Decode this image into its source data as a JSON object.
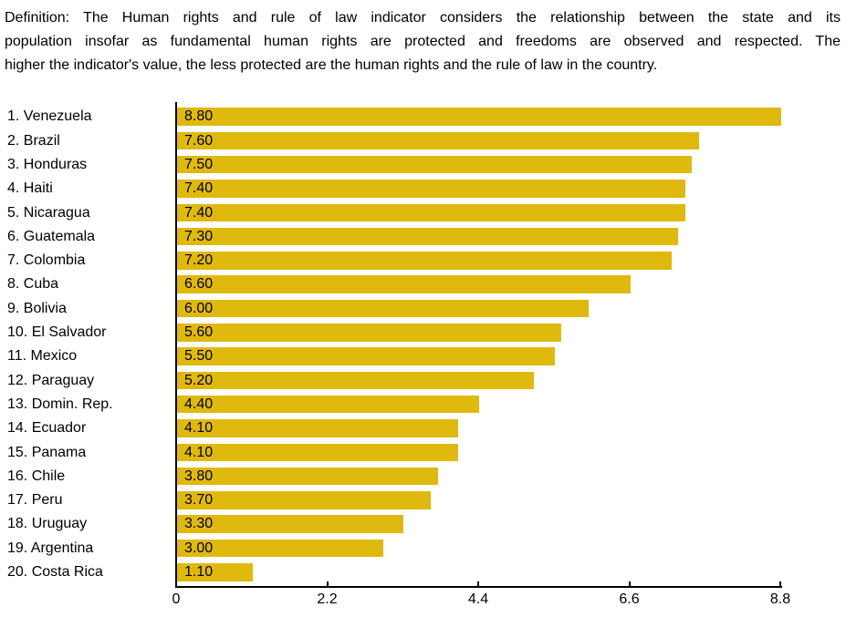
{
  "definition": {
    "full_text": "Definition: The Human rights and rule of law indicator considers the relationship between the state and its population insofar as fundamental human rights are protected and freedoms are observed and respected. The higher the indicator's value, the less protected are the human rights and the rule of law in the country.",
    "lines": [
      "Definition: The Human rights and rule of law indicator considers the relationship between the state and its",
      "population insofar as fundamental human rights are protected and freedoms are observed and respected. The",
      "higher the indicator's value, the less protected are the human rights and the rule of law in the country."
    ]
  },
  "chart_data": {
    "type": "bar",
    "orientation": "horizontal",
    "indicator": "Human rights and rule of law",
    "categories": [
      "1. Venezuela",
      "2. Brazil",
      "3. Honduras",
      "4. Haiti",
      "5. Nicaragua",
      "6. Guatemala",
      "7. Colombia",
      "8. Cuba",
      "9. Bolivia",
      "10. El Salvador",
      "11. Mexico",
      "12. Paraguay",
      "13. Domin. Rep.",
      "14. Ecuador",
      "15. Panama",
      "16. Chile",
      "17. Peru",
      "18. Uruguay",
      "19. Argentina",
      "20. Costa Rica"
    ],
    "values": [
      8.8,
      7.6,
      7.5,
      7.4,
      7.4,
      7.3,
      7.2,
      6.6,
      6.0,
      5.6,
      5.5,
      5.2,
      4.4,
      4.1,
      4.1,
      3.8,
      3.7,
      3.3,
      3.0,
      1.1
    ],
    "value_labels": [
      "8.80",
      "7.60",
      "7.50",
      "7.40",
      "7.40",
      "7.30",
      "7.20",
      "6.60",
      "6.00",
      "5.60",
      "5.50",
      "5.20",
      "4.40",
      "4.10",
      "4.10",
      "3.80",
      "3.70",
      "3.30",
      "3.00",
      "1.10"
    ],
    "xlim": [
      0,
      8.8
    ],
    "x_ticks": [
      0,
      2.2,
      4.4,
      6.6,
      8.8
    ],
    "x_tick_labels": [
      "0",
      "2.2",
      "4.4",
      "6.6",
      "8.8"
    ],
    "bar_color": "#E0B90E",
    "axis_color": "#000000",
    "grid": false,
    "value_label_position": "inside-left",
    "legend": null
  }
}
